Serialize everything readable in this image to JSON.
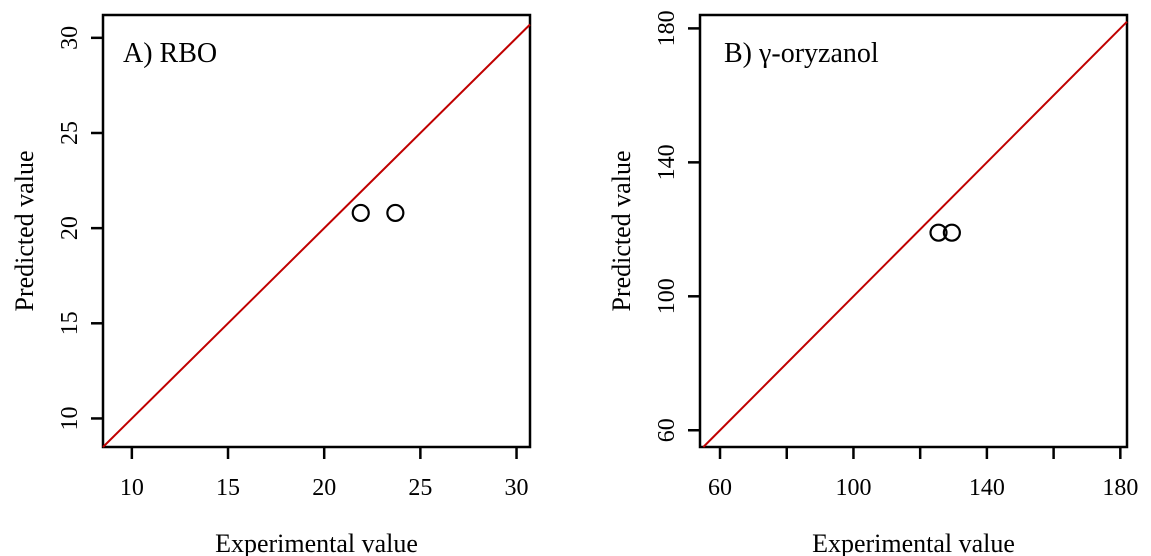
{
  "chart_data": [
    {
      "type": "scatter",
      "title": "A) RBO",
      "xlabel": "Experimental value",
      "ylabel": "Predicted value",
      "xlim": [
        8.5,
        30.7
      ],
      "ylim": [
        8.5,
        31.2
      ],
      "xticks": [
        10,
        15,
        20,
        25,
        30
      ],
      "yticks": [
        10,
        15,
        20,
        25,
        30
      ],
      "identity_line": true,
      "line_color": "#c00000",
      "point_color": "#000000",
      "grid": false,
      "points": [
        {
          "x": 21.9,
          "y": 20.8
        },
        {
          "x": 23.7,
          "y": 20.8
        }
      ]
    },
    {
      "type": "scatter",
      "title": "B) γ-oryzanol",
      "xlabel": "Experimental value",
      "ylabel": "Predicted value",
      "xlim": [
        54,
        182
      ],
      "ylim": [
        55,
        184
      ],
      "xticks": [
        60,
        100,
        140,
        180
      ],
      "xminor": [
        80,
        120,
        160
      ],
      "yticks": [
        60,
        100,
        140,
        180
      ],
      "identity_line": true,
      "line_color": "#c00000",
      "point_color": "#000000",
      "grid": false,
      "points": [
        {
          "x": 125.5,
          "y": 119
        },
        {
          "x": 129.5,
          "y": 119
        }
      ]
    }
  ]
}
